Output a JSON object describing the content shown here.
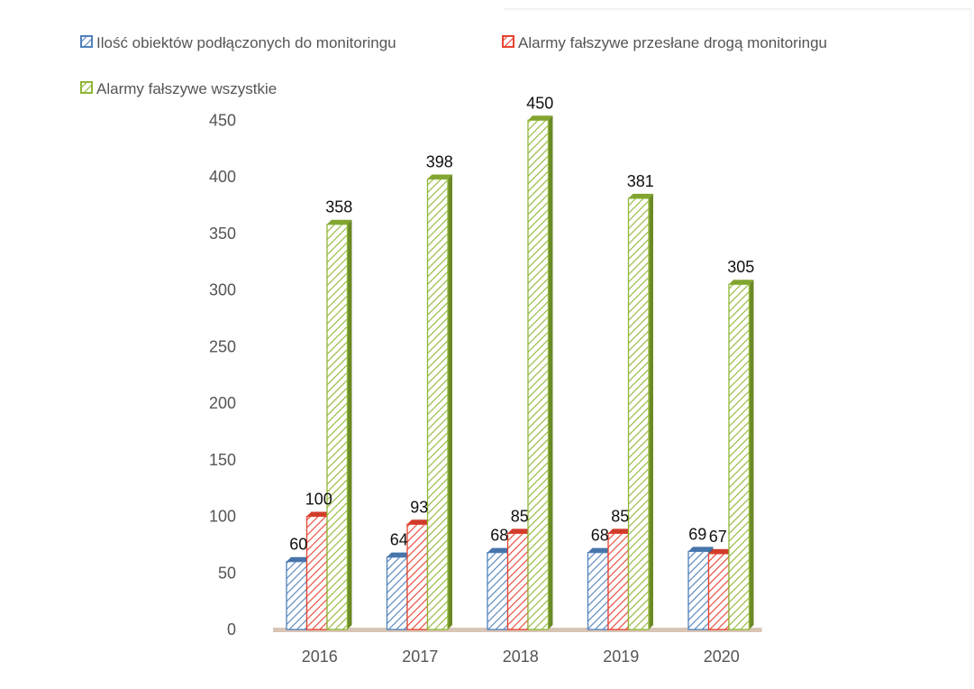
{
  "chart_data": {
    "type": "bar",
    "style": "3d-clustered-hatched",
    "categories": [
      "2016",
      "2017",
      "2018",
      "2019",
      "2020"
    ],
    "series": [
      {
        "name": "Ilość obiektów podłączonych do monitoringu",
        "values": [
          60,
          64,
          68,
          68,
          69
        ],
        "color": "#4f81bd"
      },
      {
        "name": "Alarmy fałszywe przesłane drogą monitoringu",
        "values": [
          100,
          93,
          85,
          85,
          67
        ],
        "color": "#e8432f"
      },
      {
        "name": "Alarmy fałszywe wszystkie",
        "values": [
          358,
          398,
          450,
          381,
          305
        ],
        "color": "#8fb735"
      }
    ],
    "ylim": [
      0,
      450
    ],
    "yticks": [
      "0",
      "50",
      "100",
      "150",
      "200",
      "250",
      "300",
      "350",
      "400",
      "450"
    ],
    "data_labels": true,
    "grid": false,
    "legend_position": "top",
    "floor_color": "#d9c5b5"
  }
}
